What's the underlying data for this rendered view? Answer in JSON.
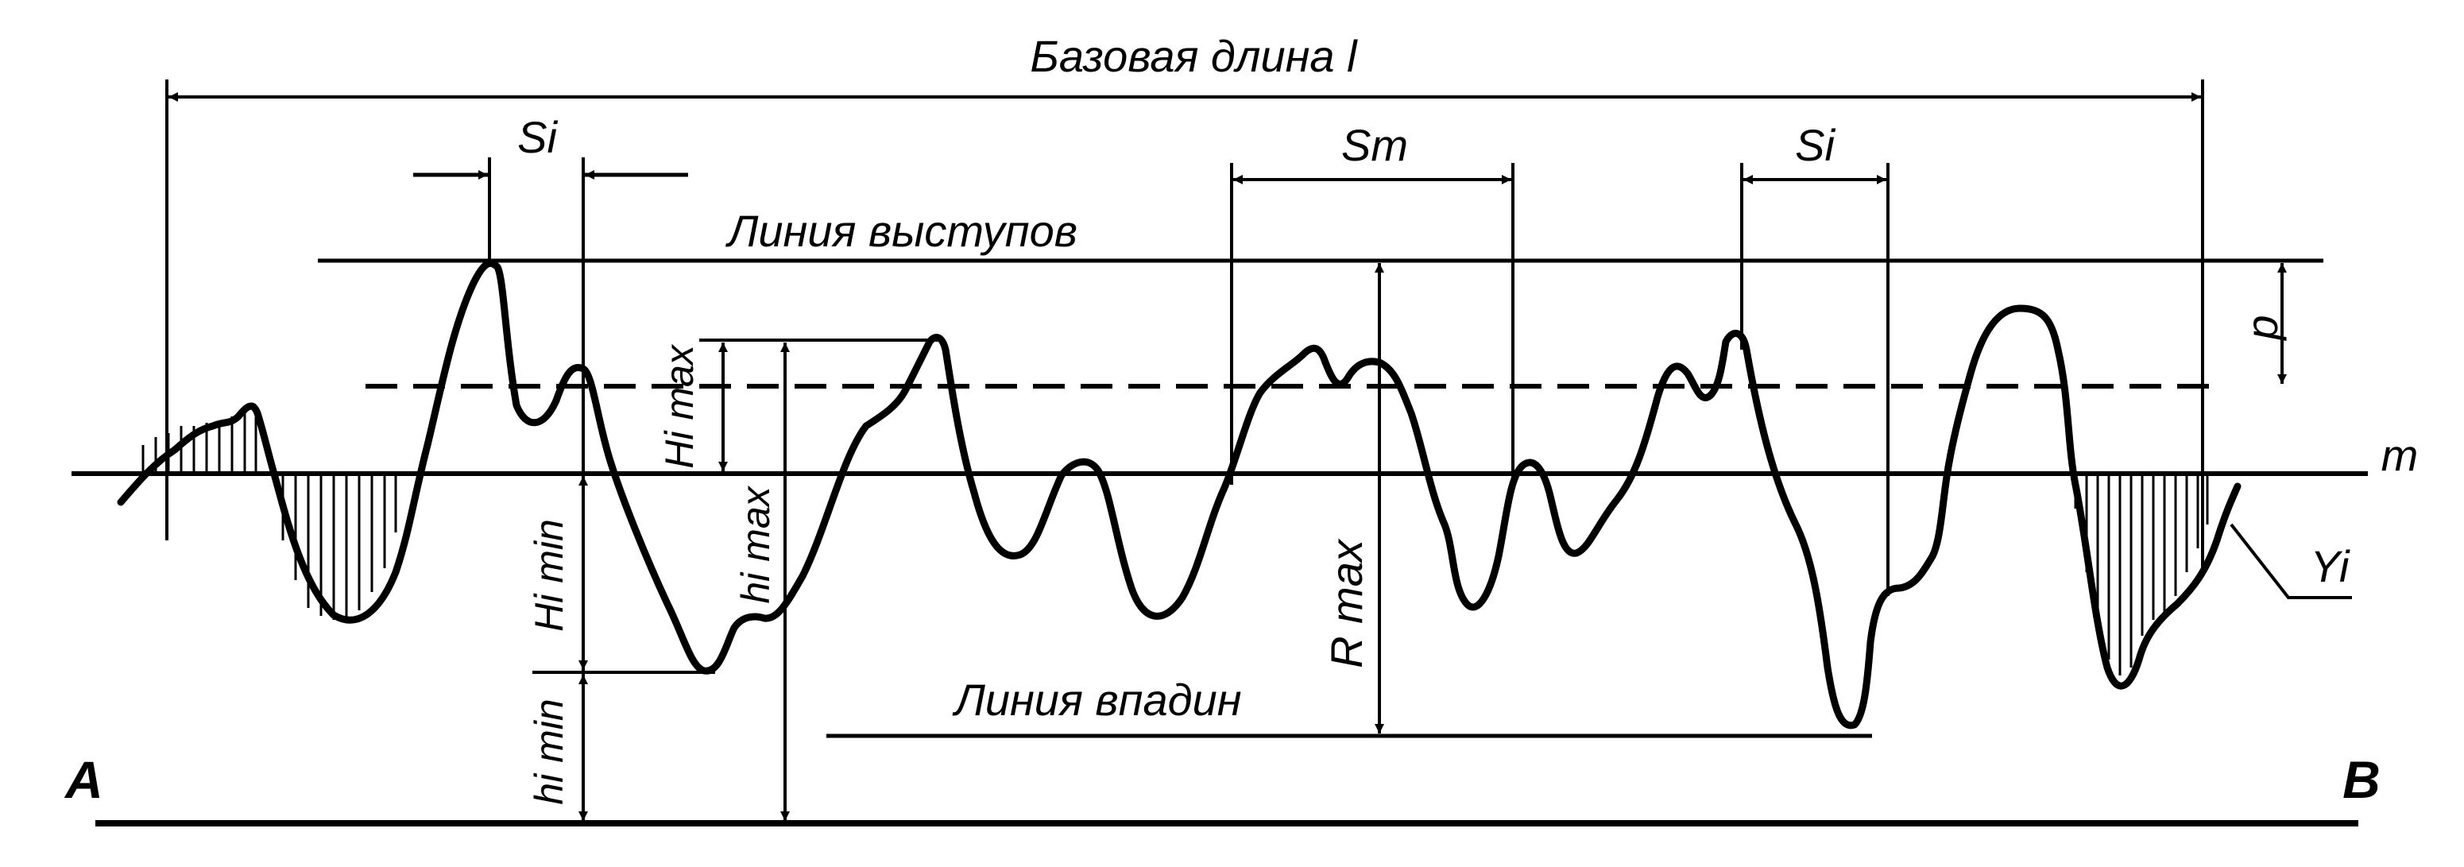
{
  "diagram": {
    "title": "Базовая длина l",
    "labels": {
      "si_left": "Si",
      "sm": "Sm",
      "si_right": "Si",
      "peak_line": "Линия выступов",
      "valley_line": "Линия впадин",
      "mean_line": "m",
      "p": "p",
      "hi_max_upper": "Hi max",
      "hi_min_upper": "Hi min",
      "hi_max_lower": "hi max",
      "hi_min_lower": "hi min",
      "r_max": "R max",
      "yi": "Yi",
      "point_a": "A",
      "point_b": "B"
    },
    "colors": {
      "ink": "#000000",
      "paper": "#ffffff"
    }
  }
}
